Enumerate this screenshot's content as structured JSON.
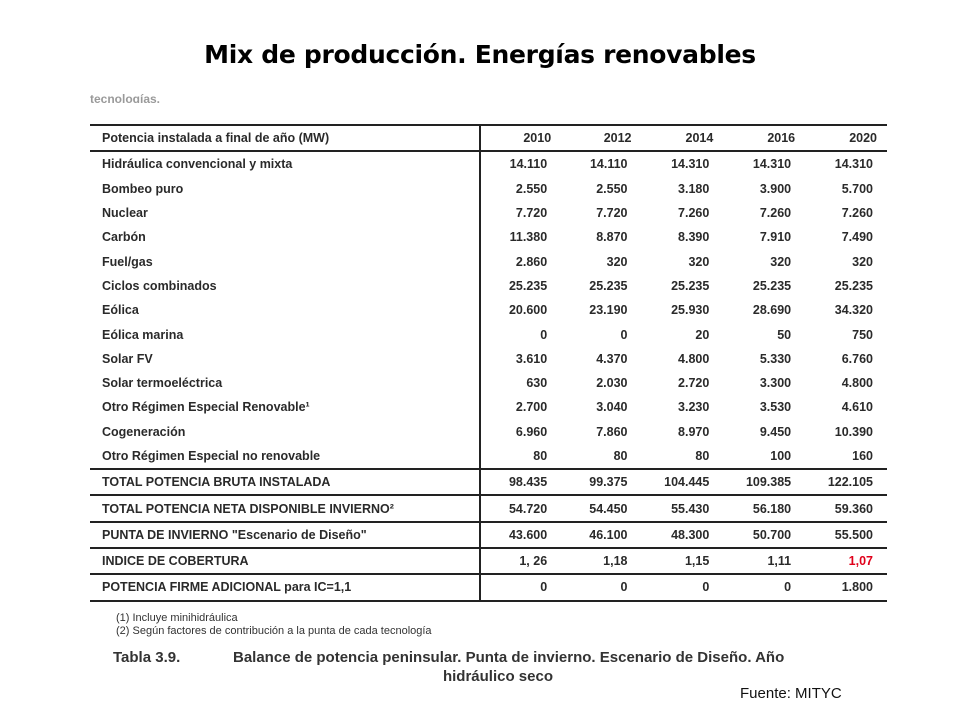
{
  "slide_title": "Mix de producción. Energías renovables",
  "cut_text": "tecnologías.",
  "table": {
    "header": [
      "Potencia instalada a final de año (MW)",
      "2010",
      "2012",
      "2014",
      "2016",
      "2020"
    ],
    "rows": [
      {
        "label": "Hidráulica convencional y mixta",
        "values": [
          "14.110",
          "14.110",
          "14.310",
          "14.310",
          "14.310"
        ]
      },
      {
        "label": "Bombeo puro",
        "values": [
          "2.550",
          "2.550",
          "3.180",
          "3.900",
          "5.700"
        ]
      },
      {
        "label": "Nuclear",
        "values": [
          "7.720",
          "7.720",
          "7.260",
          "7.260",
          "7.260"
        ]
      },
      {
        "label": "Carbón",
        "values": [
          "11.380",
          "8.870",
          "8.390",
          "7.910",
          "7.490"
        ]
      },
      {
        "label": "Fuel/gas",
        "values": [
          "2.860",
          "320",
          "320",
          "320",
          "320"
        ]
      },
      {
        "label": "Ciclos combinados",
        "values": [
          "25.235",
          "25.235",
          "25.235",
          "25.235",
          "25.235"
        ]
      },
      {
        "label": "Eólica",
        "values": [
          "20.600",
          "23.190",
          "25.930",
          "28.690",
          "34.320"
        ]
      },
      {
        "label": "Eólica marina",
        "values": [
          "0",
          "0",
          "20",
          "50",
          "750"
        ]
      },
      {
        "label": "Solar FV",
        "values": [
          "3.610",
          "4.370",
          "4.800",
          "5.330",
          "6.760"
        ]
      },
      {
        "label": "Solar termoeléctrica",
        "values": [
          "630",
          "2.030",
          "2.720",
          "3.300",
          "4.800"
        ]
      },
      {
        "label": "Otro Régimen Especial Renovable¹",
        "values": [
          "2.700",
          "3.040",
          "3.230",
          "3.530",
          "4.610"
        ]
      },
      {
        "label": "Cogeneración",
        "values": [
          "6.960",
          "7.860",
          "8.970",
          "9.450",
          "10.390"
        ]
      },
      {
        "label": "Otro Régimen Especial no renovable",
        "values": [
          "80",
          "80",
          "80",
          "100",
          "160"
        ]
      },
      {
        "label": "TOTAL POTENCIA BRUTA INSTALADA",
        "values": [
          "98.435",
          "99.375",
          "104.445",
          "109.385",
          "122.105"
        ]
      },
      {
        "label": "TOTAL POTENCIA NETA DISPONIBLE INVIERNO²",
        "values": [
          "54.720",
          "54.450",
          "55.430",
          "56.180",
          "59.360"
        ]
      },
      {
        "label": "PUNTA DE INVIERNO \"Escenario de Diseño\"",
        "values": [
          "43.600",
          "46.100",
          "48.300",
          "50.700",
          "55.500"
        ]
      },
      {
        "label": "INDICE DE COBERTURA",
        "values": [
          "1, 26",
          "1,18",
          "1,15",
          "1,11",
          "1,07"
        ]
      },
      {
        "label": "POTENCIA FIRME ADICIONAL para IC=1,1",
        "values": [
          "0",
          "0",
          "0",
          "0",
          "1.800"
        ]
      }
    ],
    "highlight_color": "#e0001a"
  },
  "notes": [
    "(1) Incluye minihidráulica",
    "(2) Según factores de contribución a la punta de cada tecnología"
  ],
  "caption": {
    "number": "Tabla 3.9.",
    "text_line1": "Balance de potencia peninsular. Punta de invierno. Escenario de Diseño. Año",
    "text_line2": "hidráulico seco"
  },
  "source": "Fuente: MITYC"
}
